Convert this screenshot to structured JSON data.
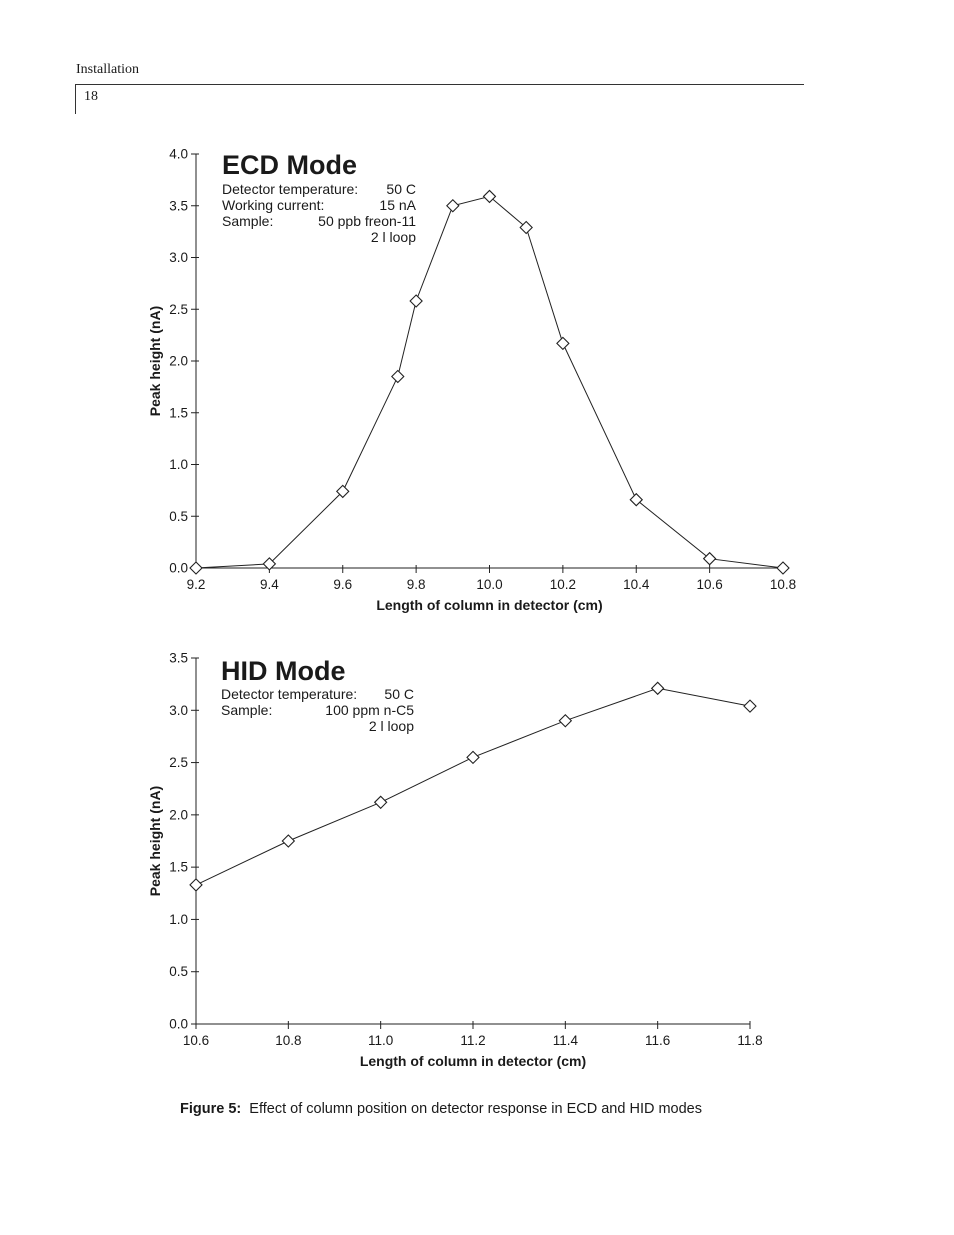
{
  "page": {
    "running_head": "Installation",
    "page_number": "18",
    "caption_label": "Figure 5:",
    "caption_text": "Effect of column position on detector response in ECD and HID modes"
  },
  "chart_data": [
    {
      "type": "line",
      "title": "ECD Mode",
      "info_lines": [
        [
          "Detector temperature:",
          "50 C"
        ],
        [
          "Working current:",
          "15 nA"
        ],
        [
          "Sample:",
          "50 ppb freon-11"
        ],
        [
          "",
          "2  l loop"
        ]
      ],
      "xlabel": "Length of column in detector (cm)",
      "ylabel": "Peak height (nA)",
      "xlim": [
        9.2,
        10.8
      ],
      "ylim": [
        0.0,
        4.0
      ],
      "xticks": [
        "9.2",
        "9.4",
        "9.6",
        "9.8",
        "10.0",
        "10.2",
        "10.4",
        "10.6",
        "10.8"
      ],
      "yticks": [
        "0.0",
        "0.5",
        "1.0",
        "1.5",
        "2.0",
        "2.5",
        "3.0",
        "3.5",
        "4.0"
      ],
      "grid": false,
      "marker": "open-diamond",
      "x": [
        9.2,
        9.4,
        9.6,
        9.75,
        9.8,
        9.9,
        10.0,
        10.1,
        10.2,
        10.4,
        10.6,
        10.8
      ],
      "y": [
        0.0,
        0.04,
        0.74,
        1.85,
        2.58,
        3.5,
        3.59,
        3.29,
        2.17,
        0.66,
        0.09,
        0.0
      ]
    },
    {
      "type": "line",
      "title": "HID Mode",
      "info_lines": [
        [
          "Detector temperature:",
          "50 C"
        ],
        [
          "Sample:",
          "100 ppm n-C5"
        ],
        [
          "",
          "2  l loop"
        ]
      ],
      "xlabel": "Length of column in detector (cm)",
      "ylabel": "Peak height (nA)",
      "xlim": [
        10.6,
        11.8
      ],
      "ylim": [
        0.0,
        3.5
      ],
      "xticks": [
        "10.6",
        "10.8",
        "11.0",
        "11.2",
        "11.4",
        "11.6",
        "11.8"
      ],
      "yticks": [
        "0.0",
        "0.5",
        "1.0",
        "1.5",
        "2.0",
        "2.5",
        "3.0",
        "3.5"
      ],
      "grid": false,
      "marker": "open-diamond",
      "x": [
        10.6,
        10.8,
        11.0,
        11.2,
        11.4,
        11.6,
        11.8
      ],
      "y": [
        1.33,
        1.75,
        2.12,
        2.55,
        2.9,
        3.21,
        3.04
      ]
    }
  ]
}
